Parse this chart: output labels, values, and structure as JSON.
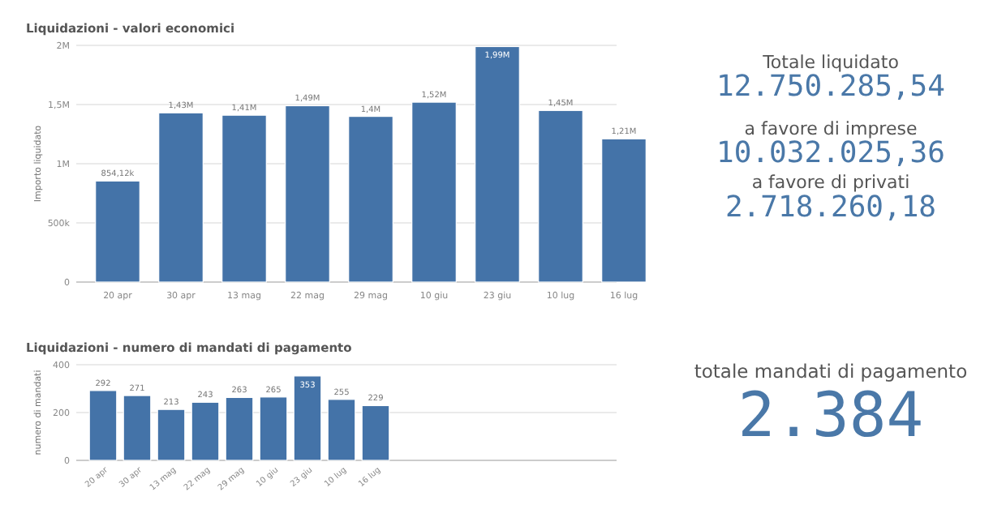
{
  "chart_data": [
    {
      "type": "bar",
      "title": "Liquidazioni - valori economici",
      "ylabel": "Importo liquidato",
      "categories": [
        "20 apr",
        "30 apr",
        "13 mag",
        "22 mag",
        "29 mag",
        "10 giu",
        "23 giu",
        "10 lug",
        "16 lug"
      ],
      "values": [
        854120,
        1430000,
        1410000,
        1490000,
        1400000,
        1520000,
        1990000,
        1450000,
        1210000
      ],
      "value_labels": [
        "854,12k",
        "1,43M",
        "1,41M",
        "1,49M",
        "1,4M",
        "1,52M",
        "1,99M",
        "1,45M",
        "1,21M"
      ],
      "color": "#4473a8",
      "ylim": [
        0,
        2000000
      ],
      "yticks": [
        0,
        {
          "value": 500000,
          "label": "500k"
        },
        {
          "value": 1000000,
          "label": "1M"
        },
        {
          "value": 1500000,
          "label": "1,5M"
        },
        {
          "value": 2000000,
          "label": "2M"
        }
      ],
      "grid": "y"
    },
    {
      "type": "other",
      "annotations": [
        "Totale liquidato",
        "12.750.285,54",
        "a favore di imprese",
        "10.032.025,36",
        "a favore di privati",
        "2.718.260,18"
      ]
    },
    {
      "type": "bar",
      "title": "Liquidazioni - numero di mandati di pagamento",
      "ylabel": "numero di mandati",
      "categories": [
        "20 apr",
        "30 apr",
        "13 mag",
        "22 mag",
        "29 mag",
        "10 giu",
        "23 giu",
        "10 lug",
        "16 lug"
      ],
      "values": [
        292,
        271,
        213,
        243,
        263,
        265,
        353,
        255,
        229
      ],
      "data_labels": true,
      "color": "#4473a8",
      "ylim": [
        0,
        400
      ],
      "yticks": [
        0,
        200,
        400
      ],
      "grid": "y"
    },
    {
      "type": "other",
      "annotations": [
        "totale mandati di pagamento",
        "2.384"
      ]
    }
  ]
}
